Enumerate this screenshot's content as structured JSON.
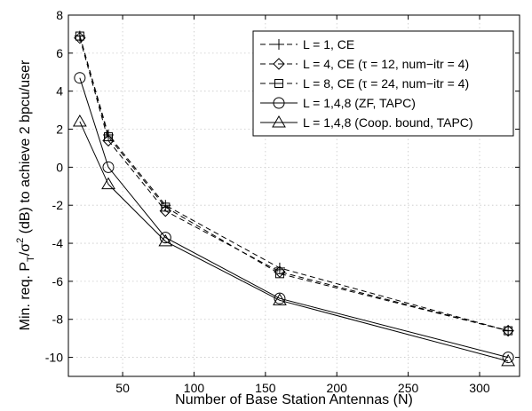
{
  "chart_data": {
    "type": "line",
    "xlabel": "Number of Base Station Antennas (N)",
    "ylabel_parts": {
      "main": "Min. req. P",
      "sub": "T",
      "slash": "/σ",
      "sup": "2",
      "rest": " (dB) to achieve 2 bpcu/user"
    },
    "xlim": [
      12,
      328
    ],
    "ylim": [
      -11,
      8
    ],
    "xticks": [
      50,
      100,
      150,
      200,
      250,
      300
    ],
    "yticks": [
      -10,
      -8,
      -6,
      -4,
      -2,
      0,
      2,
      4,
      6,
      8
    ],
    "grid": true,
    "legend_position": "top-right",
    "series": [
      {
        "name": "L = 1, CE",
        "style": "dashed",
        "marker": "plus",
        "x": [
          20,
          40,
          80,
          160,
          320
        ],
        "y": [
          6.9,
          1.7,
          -2.0,
          -5.3,
          -8.6
        ]
      },
      {
        "name": "L = 4, CE (τ = 12, num−itr = 4)",
        "style": "dashed",
        "marker": "diamond",
        "x": [
          20,
          40,
          80,
          160,
          320
        ],
        "y": [
          6.8,
          1.4,
          -2.3,
          -5.5,
          -8.6
        ]
      },
      {
        "name": "L = 8, CE (τ = 24, num−itr = 4)",
        "style": "dashed",
        "marker": "square",
        "x": [
          20,
          40,
          80,
          160,
          320
        ],
        "y": [
          6.9,
          1.6,
          -2.1,
          -5.6,
          -8.6
        ]
      },
      {
        "name": "L = 1,4,8 (ZF, TAPC)",
        "style": "solid",
        "marker": "circle",
        "x": [
          20,
          40,
          80,
          160,
          320
        ],
        "y": [
          4.7,
          0.0,
          -3.7,
          -6.9,
          -10.0
        ]
      },
      {
        "name": "L = 1,4,8 (Coop. bound, TAPC)",
        "style": "solid",
        "marker": "triangle",
        "x": [
          20,
          40,
          80,
          160,
          320
        ],
        "y": [
          2.4,
          -0.9,
          -3.9,
          -7.0,
          -10.2
        ]
      }
    ]
  }
}
